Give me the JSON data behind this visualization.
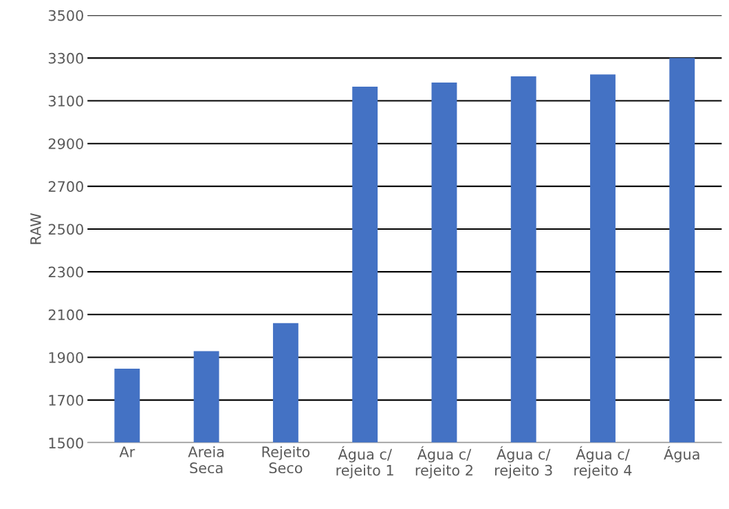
{
  "chart_data": {
    "type": "bar",
    "ylabel": "RAW",
    "categories": [
      "Ar",
      "Areia\nSeca",
      "Rejeito\nSeco",
      "Água c/\nrejeito 1",
      "Água c/\nrejeito 2",
      "Água c/\nrejeito 3",
      "Água c/\nrejeito 4",
      "Água"
    ],
    "values": [
      1847,
      1929,
      2060,
      3166,
      3185,
      3214,
      3223,
      3300
    ],
    "color": "#4472c4",
    "ylim": [
      1500,
      3500
    ],
    "yticks": [
      1500,
      1700,
      1900,
      2100,
      2300,
      2500,
      2700,
      2900,
      3100,
      3300,
      3500
    ],
    "grid": "y"
  }
}
